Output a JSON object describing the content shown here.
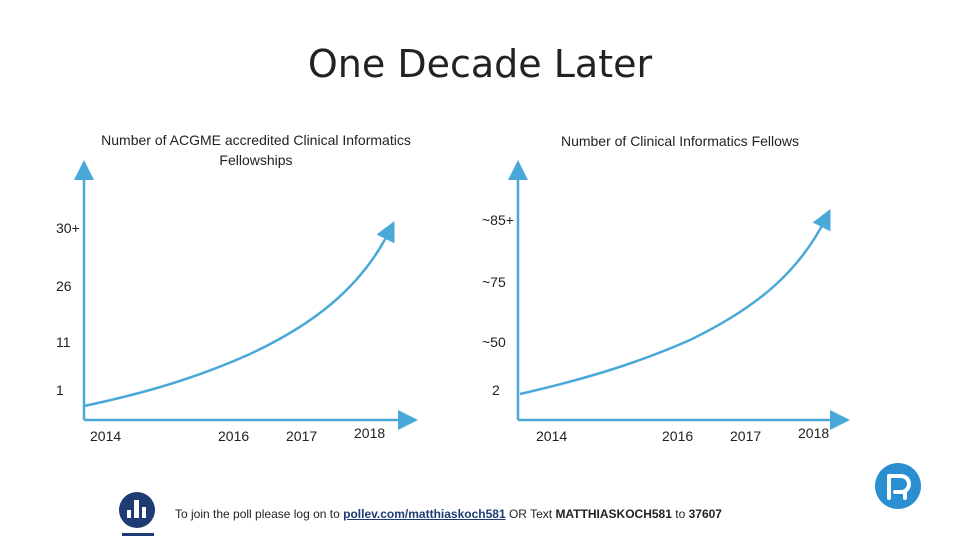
{
  "title": "One Decade Later",
  "chart_data": [
    {
      "type": "line",
      "title": "Number of ACGME accredited Clinical Informatics Fellowships",
      "categories": [
        "2014",
        "2016",
        "2017",
        "2018"
      ],
      "y_tick_labels": [
        "1",
        "11",
        "26",
        "30+"
      ],
      "values": [
        1,
        11,
        26,
        30
      ],
      "curve": "accelerating",
      "color": "#4aa8d8"
    },
    {
      "type": "line",
      "title": "Number of Clinical Informatics Fellows",
      "categories": [
        "2014",
        "2016",
        "2017",
        "2018"
      ],
      "y_tick_labels": [
        "2",
        "~50",
        "~75",
        "~85+"
      ],
      "values": [
        2,
        50,
        75,
        85
      ],
      "curve": "accelerating",
      "color": "#4aa8d8"
    }
  ],
  "footer": {
    "prefix": "To join the poll please log on to ",
    "link": "pollev.com/matthiaskoch581",
    "middle": " OR Text ",
    "keyword": "MATTHIASKOCH581",
    "to": " to ",
    "number": "37607"
  },
  "logos": {
    "left": "poll-everywhere-logo",
    "right": "brand-logo"
  }
}
